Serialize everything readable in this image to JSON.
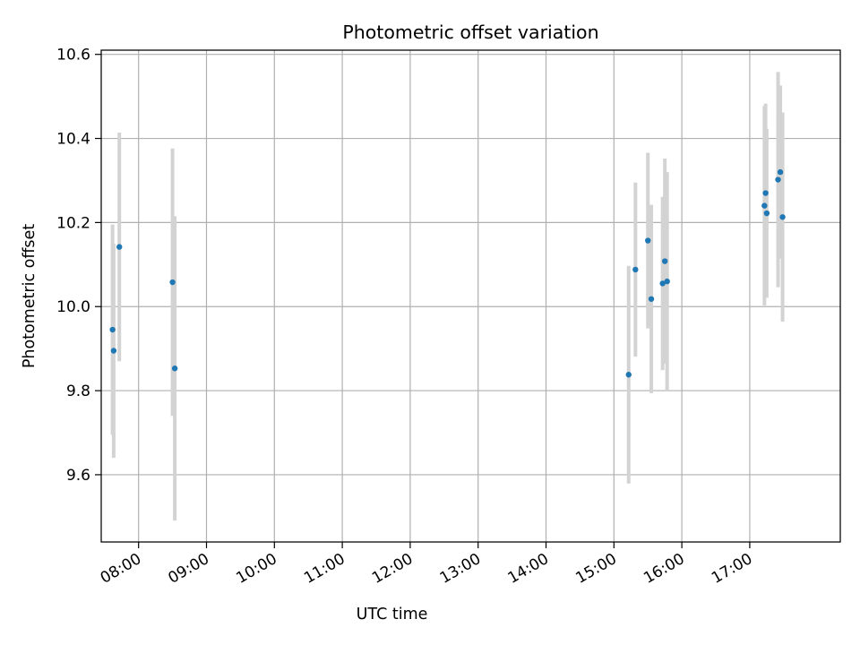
{
  "chart_data": {
    "type": "scatter",
    "title": "Photometric offset variation",
    "xlabel": "UTC time",
    "ylabel": "Photometric offset",
    "x_axis_type": "time",
    "x_tick_labels": [
      "08:00",
      "09:00",
      "10:00",
      "11:00",
      "12:00",
      "13:00",
      "14:00",
      "15:00",
      "16:00",
      "17:00"
    ],
    "xlim": [
      "07:27",
      "18:20"
    ],
    "ylim": [
      9.44,
      10.61
    ],
    "y_ticks": [
      9.6,
      9.8,
      10.0,
      10.2,
      10.4,
      10.6
    ],
    "grid": true,
    "errorbar_color": "#d3d3d3",
    "marker_color": "#1f77b4",
    "points": [
      {
        "x": "07:37",
        "y": 9.945,
        "yerr": 0.25
      },
      {
        "x": "07:38",
        "y": 9.895,
        "yerr": 0.255
      },
      {
        "x": "07:43",
        "y": 10.142,
        "yerr": 0.272
      },
      {
        "x": "08:30",
        "y": 10.058,
        "yerr": 0.318
      },
      {
        "x": "08:32",
        "y": 9.853,
        "yerr": 0.362
      },
      {
        "x": "15:13",
        "y": 9.838,
        "yerr": 0.259
      },
      {
        "x": "15:19",
        "y": 10.088,
        "yerr": 0.207
      },
      {
        "x": "15:30",
        "y": 10.157,
        "yerr": 0.209
      },
      {
        "x": "15:33",
        "y": 10.018,
        "yerr": 0.224
      },
      {
        "x": "15:43",
        "y": 10.055,
        "yerr": 0.206
      },
      {
        "x": "15:45",
        "y": 10.108,
        "yerr": 0.244
      },
      {
        "x": "15:47",
        "y": 10.06,
        "yerr": 0.26
      },
      {
        "x": "17:13",
        "y": 10.24,
        "yerr": 0.237
      },
      {
        "x": "17:14",
        "y": 10.27,
        "yerr": 0.213
      },
      {
        "x": "17:15",
        "y": 10.222,
        "yerr": 0.201
      },
      {
        "x": "17:25",
        "y": 10.302,
        "yerr": 0.256
      },
      {
        "x": "17:27",
        "y": 10.32,
        "yerr": 0.206
      },
      {
        "x": "17:29",
        "y": 10.213,
        "yerr": 0.249
      }
    ]
  }
}
